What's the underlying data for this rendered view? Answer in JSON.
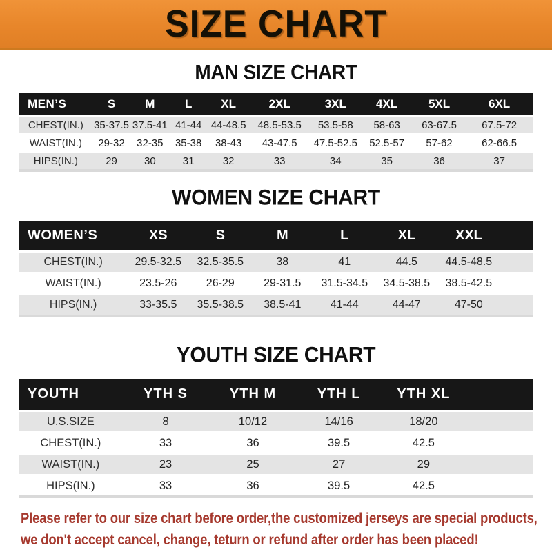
{
  "banner": {
    "title": "SIZE CHART",
    "bg_color": "#E8862A",
    "text_color": "#141006"
  },
  "sections": [
    {
      "heading": "MAN SIZE CHART",
      "header_label": "MEN’S",
      "columns": [
        "S",
        "M",
        "L",
        "XL",
        "2XL",
        "3XL",
        "4XL",
        "5XL",
        "6XL"
      ],
      "rows": [
        {
          "label": "CHEST(IN.)",
          "values": [
            "35-37.5",
            "37.5-41",
            "41-44",
            "44-48.5",
            "48.5-53.5",
            "53.5-58",
            "58-63",
            "63-67.5",
            "67.5-72"
          ]
        },
        {
          "label": "WAIST(IN.)",
          "values": [
            "29-32",
            "32-35",
            "35-38",
            "38-43",
            "43-47.5",
            "47.5-52.5",
            "52.5-57",
            "57-62",
            "62-66.5"
          ]
        },
        {
          "label": "HIPS(IN.)",
          "values": [
            "29",
            "30",
            "31",
            "32",
            "33",
            "34",
            "35",
            "36",
            "37"
          ]
        }
      ]
    },
    {
      "heading": "WOMEN SIZE CHART",
      "header_label": "WOMEN’S",
      "columns": [
        "XS",
        "S",
        "M",
        "L",
        "XL",
        "XXL"
      ],
      "rows": [
        {
          "label": "CHEST(IN.)",
          "values": [
            "29.5-32.5",
            "32.5-35.5",
            "38",
            "41",
            "44.5",
            "44.5-48.5"
          ]
        },
        {
          "label": "WAIST(IN.)",
          "values": [
            "23.5-26",
            "26-29",
            "29-31.5",
            "31.5-34.5",
            "34.5-38.5",
            "38.5-42.5"
          ]
        },
        {
          "label": "HIPS(IN.)",
          "values": [
            "33-35.5",
            "35.5-38.5",
            "38.5-41",
            "41-44",
            "44-47",
            "47-50"
          ]
        }
      ]
    },
    {
      "heading": "YOUTH SIZE CHART",
      "header_label": "YOUTH",
      "columns": [
        "YTH S",
        "YTH M",
        "YTH L",
        "YTH XL"
      ],
      "rows": [
        {
          "label": "U.S.SIZE",
          "values": [
            "8",
            "10/12",
            "14/16",
            "18/20"
          ]
        },
        {
          "label": "CHEST(IN.)",
          "values": [
            "33",
            "36",
            "39.5",
            "42.5"
          ]
        },
        {
          "label": "WAIST(IN.)",
          "values": [
            "23",
            "25",
            "27",
            "29"
          ]
        },
        {
          "label": "HIPS(IN.)",
          "values": [
            "33",
            "36",
            "39.5",
            "42.5"
          ]
        }
      ]
    }
  ],
  "footer": {
    "line1": "Please refer to our size chart before order,the customized jerseys are special products,",
    "line2": "we don't accept cancel, change, teturn or refund after order has been placed!",
    "text_color": "#a6392e"
  }
}
